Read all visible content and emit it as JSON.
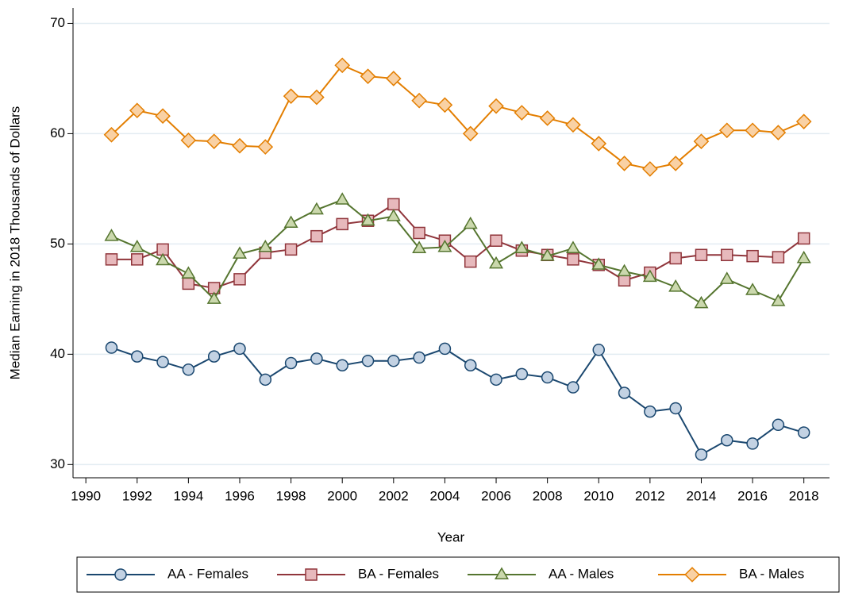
{
  "chart_data": {
    "type": "line",
    "y_label": "Median Earning in 2018 Thousands of Dollars",
    "x_label": "Year",
    "x": [
      1991,
      1992,
      1993,
      1994,
      1995,
      1996,
      1997,
      1998,
      1999,
      2000,
      2001,
      2002,
      2003,
      2004,
      2005,
      2006,
      2007,
      2008,
      2009,
      2010,
      2011,
      2012,
      2013,
      2014,
      2015,
      2016,
      2017,
      2018
    ],
    "series": [
      {
        "name": "AA - Females",
        "color": "#1a476f",
        "marker": "circle",
        "marker_fill": "#c3d2e3",
        "values": [
          40.6,
          39.8,
          39.3,
          38.6,
          39.8,
          40.5,
          37.7,
          39.2,
          39.6,
          39.0,
          39.4,
          39.4,
          39.7,
          40.5,
          39.0,
          37.7,
          38.2,
          37.9,
          37.0,
          40.4,
          36.5,
          34.8,
          35.1,
          30.9,
          32.2,
          31.9,
          33.6,
          32.9
        ]
      },
      {
        "name": "BA - Females",
        "color": "#90353b",
        "marker": "square",
        "marker_fill": "#e7b9bc",
        "values": [
          48.6,
          48.6,
          49.5,
          46.4,
          46.0,
          46.8,
          49.2,
          49.5,
          50.7,
          51.8,
          52.1,
          53.6,
          51.0,
          50.3,
          48.4,
          50.3,
          49.4,
          49.0,
          48.6,
          48.1,
          46.7,
          47.4,
          48.7,
          49.0,
          49.0,
          48.9,
          48.8,
          50.5
        ]
      },
      {
        "name": "AA - Males",
        "color": "#55752f",
        "marker": "triangle",
        "marker_fill": "#cbd8ad",
        "values": [
          50.7,
          49.7,
          48.5,
          47.3,
          45.0,
          49.1,
          49.7,
          51.9,
          53.1,
          54.0,
          52.1,
          52.5,
          49.6,
          49.7,
          51.8,
          48.2,
          49.6,
          48.9,
          49.6,
          48.1,
          47.5,
          47.0,
          46.1,
          44.6,
          46.8,
          45.8,
          44.8,
          48.7
        ]
      },
      {
        "name": "BA - Males",
        "color": "#e37e00",
        "marker": "diamond",
        "marker_fill": "#f9d1a4",
        "values": [
          59.9,
          62.1,
          61.6,
          59.4,
          59.3,
          58.9,
          58.8,
          63.4,
          63.3,
          66.2,
          65.2,
          65.0,
          63.0,
          62.6,
          60.0,
          62.5,
          61.9,
          61.4,
          60.8,
          59.1,
          57.3,
          56.8,
          57.3,
          59.3,
          60.3,
          60.3,
          60.1,
          61.1
        ]
      }
    ],
    "xlim": [
      1989.5,
      2019
    ],
    "ylim": [
      28.8,
      71.4
    ],
    "xticks": [
      1990,
      1992,
      1994,
      1996,
      1998,
      2000,
      2002,
      2004,
      2006,
      2008,
      2010,
      2012,
      2014,
      2016,
      2018
    ],
    "yticks": [
      30,
      40,
      50,
      60,
      70
    ],
    "grid": true,
    "legend": "bottom"
  }
}
